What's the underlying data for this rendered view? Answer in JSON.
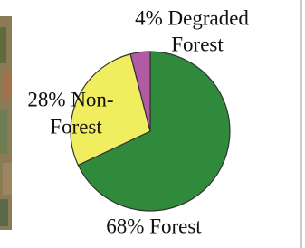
{
  "chart_data": {
    "type": "pie",
    "values": [
      68,
      28,
      4
    ],
    "labels": [
      [
        "68% Forest"
      ],
      [
        "28% Non-",
        "Forest"
      ],
      [
        "4% Degraded",
        "Forest"
      ]
    ],
    "colors": [
      "#2f8a3b",
      "#f0ee5e",
      "#b35aa5"
    ]
  }
}
